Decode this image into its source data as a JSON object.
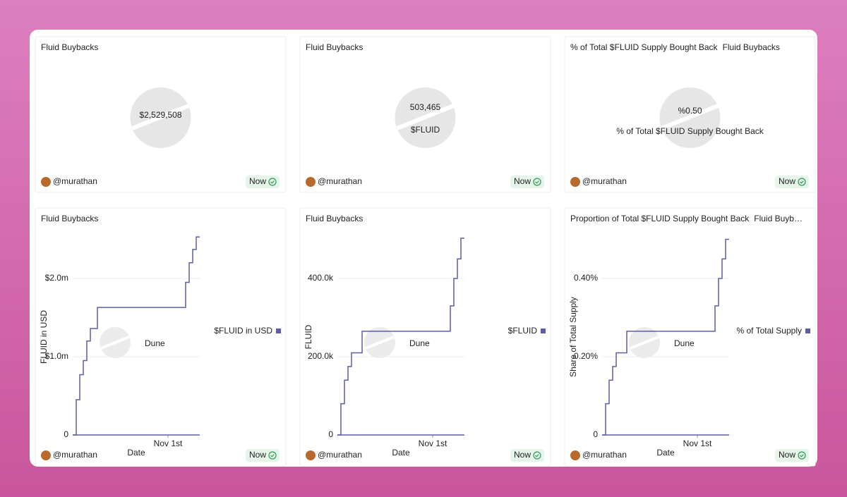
{
  "counters": [
    {
      "title": "Fluid Buybacks",
      "value": "$2,529,508",
      "author": "@murathan",
      "status": "Now"
    },
    {
      "title": "Fluid Buybacks",
      "value": "503,465",
      "caption": "$FLUID",
      "author": "@murathan",
      "status": "Now"
    },
    {
      "title": "% of Total $FLUID Supply Bought Back",
      "subtitle": "Fluid Buybacks",
      "value": "%0.50",
      "caption": "% of Total $FLUID Supply Bought Back",
      "author": "@murathan",
      "status": "Now"
    }
  ],
  "chart_data": [
    {
      "type": "line",
      "step": true,
      "title": "Fluid Buybacks",
      "x_label": "Date",
      "y_label": "FLUID in USD",
      "watermark": "Dune",
      "author": "@murathan",
      "status": "Now",
      "legend": "right",
      "grid": true,
      "categories": [
        null,
        null,
        null,
        null,
        null,
        null,
        null,
        null,
        null,
        null,
        null,
        null,
        null,
        null,
        null,
        null,
        null,
        null,
        null,
        null,
        null,
        null,
        null,
        null,
        null,
        null,
        null,
        "Nov 1st",
        null,
        null,
        null,
        null,
        null,
        null,
        null,
        null,
        null
      ],
      "series": [
        {
          "name": "$FLUID in USD",
          "color": "#5b5ea6",
          "values": [
            0,
            450000,
            770000,
            950000,
            1200000,
            1360000,
            1360000,
            1630000,
            1630000,
            1630000,
            1630000,
            1630000,
            1630000,
            1630000,
            1630000,
            1630000,
            1630000,
            1630000,
            1630000,
            1630000,
            1630000,
            1630000,
            1630000,
            1630000,
            1630000,
            1630000,
            1630000,
            1630000,
            1630000,
            1630000,
            1630000,
            1630000,
            1950000,
            2200000,
            2370000,
            2530000,
            2530000
          ]
        }
      ],
      "ylim": [
        0,
        2600000
      ],
      "yticks": [
        0,
        {
          "value": 1000000,
          "label": "$1.0m"
        },
        {
          "value": 2000000,
          "label": "$2.0m"
        }
      ]
    },
    {
      "type": "line",
      "step": true,
      "title": "Fluid Buybacks",
      "x_label": "Date",
      "y_label": "FLUID",
      "watermark": "Dune",
      "author": "@murathan",
      "status": "Now",
      "legend": "right",
      "grid": true,
      "categories": [
        null,
        null,
        null,
        null,
        null,
        null,
        null,
        null,
        null,
        null,
        null,
        null,
        null,
        null,
        null,
        null,
        null,
        null,
        null,
        null,
        null,
        null,
        null,
        null,
        null,
        null,
        null,
        "Nov 1st",
        null,
        null,
        null,
        null,
        null,
        null,
        null,
        null,
        null
      ],
      "series": [
        {
          "name": "$FLUID",
          "color": "#5b5ea6",
          "values": [
            0,
            80000,
            140000,
            175000,
            210000,
            210000,
            210000,
            265000,
            265000,
            265000,
            265000,
            265000,
            265000,
            265000,
            265000,
            265000,
            265000,
            265000,
            265000,
            265000,
            265000,
            265000,
            265000,
            265000,
            265000,
            265000,
            265000,
            265000,
            265000,
            265000,
            265000,
            265000,
            330000,
            400000,
            450000,
            503000,
            503000
          ]
        }
      ],
      "ylim": [
        0,
        520000
      ],
      "yticks": [
        0,
        {
          "value": 200000,
          "label": "200.0k"
        },
        {
          "value": 400000,
          "label": "400.0k"
        }
      ]
    },
    {
      "type": "line",
      "step": true,
      "title": "Proportion of Total $FLUID Supply Bought Back",
      "subtitle": "Fluid Buyb…",
      "x_label": "Date",
      "y_label": "Share of Total Supply",
      "watermark": "Dune",
      "author": "@murathan",
      "status": "Now",
      "legend": "right",
      "grid": true,
      "categories": [
        null,
        null,
        null,
        null,
        null,
        null,
        null,
        null,
        null,
        null,
        null,
        null,
        null,
        null,
        null,
        null,
        null,
        null,
        null,
        null,
        null,
        null,
        null,
        null,
        null,
        null,
        null,
        "Nov 1st",
        null,
        null,
        null,
        null,
        null,
        null,
        null,
        null,
        null
      ],
      "series": [
        {
          "name": "% of Total Supply",
          "color": "#5b5ea6",
          "values": [
            0,
            0.08,
            0.14,
            0.175,
            0.21,
            0.21,
            0.21,
            0.265,
            0.265,
            0.265,
            0.265,
            0.265,
            0.265,
            0.265,
            0.265,
            0.265,
            0.265,
            0.265,
            0.265,
            0.265,
            0.265,
            0.265,
            0.265,
            0.265,
            0.265,
            0.265,
            0.265,
            0.265,
            0.265,
            0.265,
            0.265,
            0.265,
            0.33,
            0.4,
            0.45,
            0.5,
            0.5
          ]
        }
      ],
      "ylim": [
        0,
        0.52
      ],
      "yticks": [
        0,
        {
          "value": 0.2,
          "label": "0.20%"
        },
        {
          "value": 0.4,
          "label": "0.40%"
        }
      ]
    }
  ]
}
